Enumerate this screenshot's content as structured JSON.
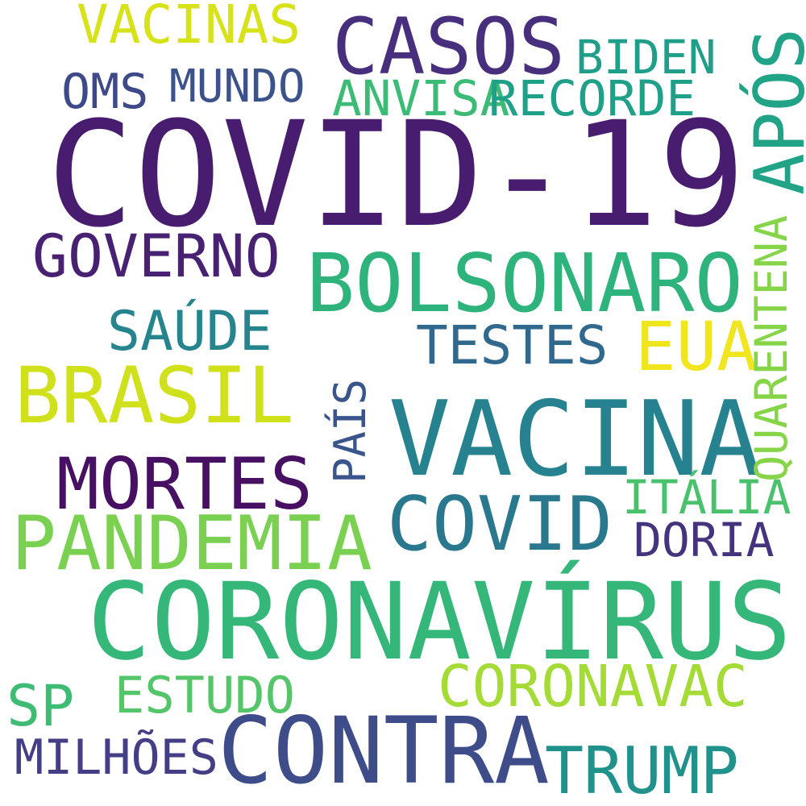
{
  "words": {
    "covid19": {
      "text": "COVID-19",
      "color": "#481c6e"
    },
    "coronavirus": {
      "text": "CORONAVÍRUS",
      "color": "#35b779"
    },
    "vacina": {
      "text": "VACINA",
      "color": "#26828e"
    },
    "bolsonaro": {
      "text": "BOLSONARO",
      "color": "#2eb37c"
    },
    "contra": {
      "text": "CONTRA",
      "color": "#3e4c8a"
    },
    "brasil": {
      "text": "BRASIL",
      "color": "#d0e11c"
    },
    "pandemia": {
      "text": "PANDEMIA",
      "color": "#7ad151"
    },
    "casos": {
      "text": "CASOS",
      "color": "#472f7d"
    },
    "mortes": {
      "text": "MORTES",
      "color": "#471063"
    },
    "covid": {
      "text": "COVID",
      "color": "#2a788e"
    },
    "eua": {
      "text": "EUA",
      "color": "#f1e51d"
    },
    "governo": {
      "text": "GOVERNO",
      "color": "#482173"
    },
    "trump": {
      "text": "TRUMP",
      "color": "#21918c"
    },
    "coronavac": {
      "text": "CORONAVAC",
      "color": "#a5db36"
    },
    "saude": {
      "text": "SAÚDE",
      "color": "#25848e"
    },
    "anvisa": {
      "text": "ANVISA",
      "color": "#3bbb75"
    },
    "recorde": {
      "text": "RECORDE",
      "color": "#1fa088"
    },
    "vacinas": {
      "text": "VACINAS",
      "color": "#d8e219"
    },
    "testes": {
      "text": "TESTES",
      "color": "#31688e"
    },
    "biden": {
      "text": "BIDEN",
      "color": "#1f9e89"
    },
    "mundo": {
      "text": "MUNDO",
      "color": "#3b528b"
    },
    "oms": {
      "text": "OMS",
      "color": "#3e4989"
    },
    "estudo": {
      "text": "ESTUDO",
      "color": "#54c568"
    },
    "sp": {
      "text": "SP",
      "color": "#3fbc73"
    },
    "milhoes": {
      "text": "MILHÕES",
      "color": "#433e85"
    },
    "italia": {
      "text": "ITÁLIA",
      "color": "#4ac16d"
    },
    "doria": {
      "text": "DORIA",
      "color": "#46337e"
    },
    "apos": {
      "text": "APÓS",
      "color": "#20a386"
    },
    "quarentena": {
      "text": "QUARENTENA",
      "color": "#86d549"
    },
    "pais": {
      "text": "PAÍS",
      "color": "#3a548c"
    }
  }
}
